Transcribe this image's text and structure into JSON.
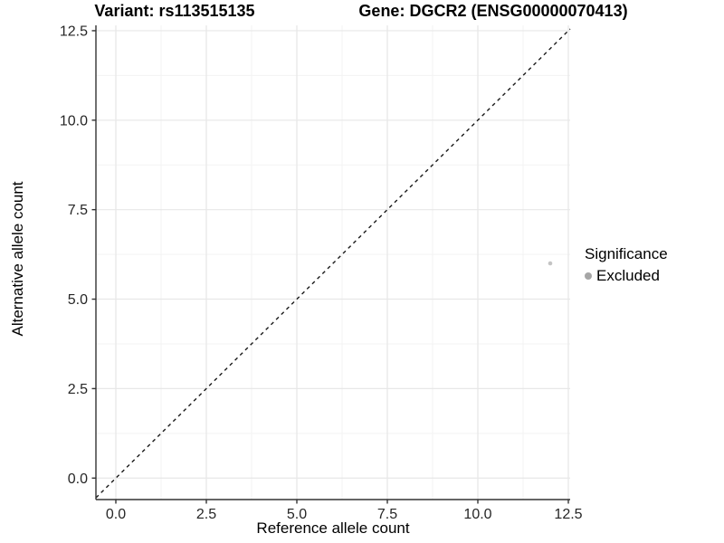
{
  "chart_data": {
    "type": "scatter",
    "title_left": "Variant: rs113515135",
    "title_right": "Gene: DGCR2 (ENSG00000070413)",
    "xlabel": "Reference allele count",
    "ylabel": "Alternative allele count",
    "xlim": [
      -0.55,
      12.55
    ],
    "ylim": [
      -0.6,
      12.65
    ],
    "x_major_ticks": [
      0,
      2.5,
      5,
      7.5,
      10,
      12.5
    ],
    "x_tick_labels": [
      "0.0",
      "2.5",
      "5.0",
      "7.5",
      "10.0",
      "12.5"
    ],
    "x_minor_ticks": [
      1.25,
      3.75,
      6.25,
      8.75,
      11.25
    ],
    "y_major_ticks": [
      0,
      2.5,
      5,
      7.5,
      10,
      12.5
    ],
    "y_tick_labels": [
      "0.0",
      "2.5",
      "5.0",
      "7.5",
      "10.0",
      "12.5"
    ],
    "y_minor_ticks": [
      1.25,
      3.75,
      6.25,
      8.75,
      11.25
    ],
    "grid": true,
    "series": [
      {
        "name": "Excluded",
        "point_color": "#c4c4c4",
        "points": [
          {
            "x": 12,
            "y": 6
          }
        ]
      }
    ],
    "reference_line": {
      "kind": "identity",
      "slope": 1,
      "intercept": 0,
      "style": "dashed",
      "color": "#1a1a1a"
    },
    "legend": {
      "title": "Significance",
      "position": "right",
      "items": [
        {
          "label": "Excluded",
          "marker_color": "#a6a6a6"
        }
      ]
    },
    "colors": {
      "major_gridline": "#e7e7e7",
      "minor_gridline": "#f3f3f3",
      "axis_line": "#333333",
      "tick_mark": "#333333",
      "tick_label": "#262626",
      "background": "#ffffff"
    }
  }
}
